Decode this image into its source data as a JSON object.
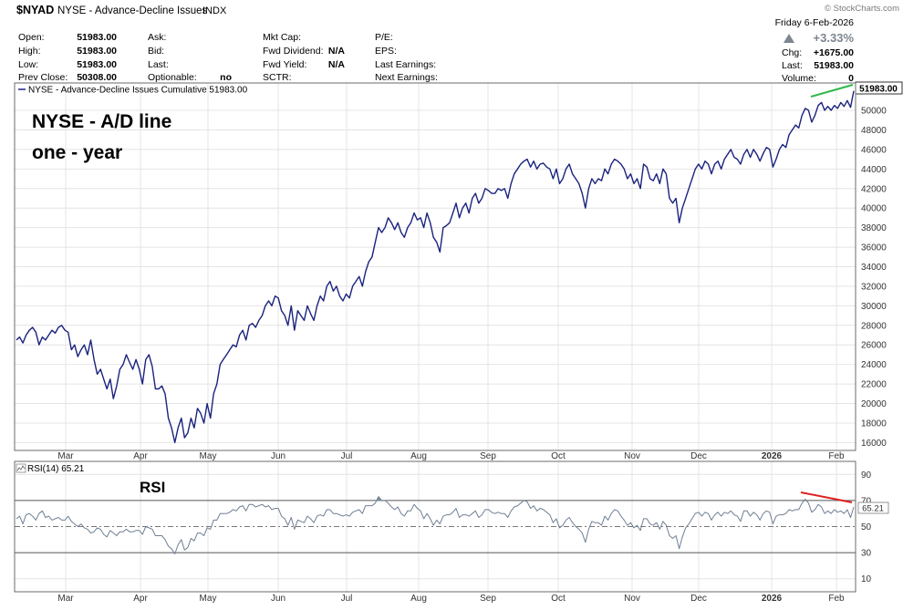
{
  "header": {
    "symbol": "$NYAD",
    "name": "NYSE - Advance-Decline Issues",
    "exchange": "INDX",
    "watermark": "© StockCharts.com",
    "date": "Friday  6-Feb-2026",
    "pct_change": "+3.33%",
    "chg_label": "Chg:",
    "chg_value": "+1675.00",
    "last_label": "Last:",
    "last_value": "51983.00",
    "volume_label": "Volume:",
    "volume_value": "0"
  },
  "quote": {
    "open_label": "Open:",
    "open_value": "51983.00",
    "high_label": "High:",
    "high_value": "51983.00",
    "low_label": "Low:",
    "low_value": "51983.00",
    "prevclose_label": "Prev Close:",
    "prevclose_value": "50308.00",
    "ask_label": "Ask:",
    "bid_label": "Bid:",
    "qlast_label": "Last:",
    "optionable_label": "Optionable:",
    "optionable_value": "no",
    "mktcap_label": "Mkt Cap:",
    "fwddiv_label": "Fwd Dividend:",
    "fwddiv_value": "N/A",
    "fwdyield_label": "Fwd Yield:",
    "fwdyield_value": "N/A",
    "sctr_label": "SCTR:",
    "pe_label": "P/E:",
    "eps_label": "EPS:",
    "lastearn_label": "Last Earnings:",
    "nextearn_label": "Next Earnings:"
  },
  "annotations": {
    "title_line1": "NYSE - A/D line",
    "title_line2": "one - year",
    "rsi_text": "RSI"
  },
  "colors": {
    "price_line": "#1a237e",
    "rsi_line": "#6f7f93",
    "highlight_green": "#2db84a",
    "highlight_red": "#e02020",
    "rsi_fill": "#7f8f9f",
    "grid": "#e4e4e4",
    "frame": "#6b6b6b"
  },
  "chart_data": [
    {
      "type": "line",
      "title": "NYSE - Advance-Decline Issues Cumulative 51983.00",
      "last_label": "51983.00",
      "xlabels": [
        "Mar",
        "Apr",
        "May",
        "Jun",
        "Jul",
        "Aug",
        "Sep",
        "Oct",
        "Nov",
        "Dec",
        "2026",
        "Feb"
      ],
      "ylim": [
        15200,
        52800
      ],
      "yticks": [
        16000,
        18000,
        20000,
        22000,
        24000,
        26000,
        28000,
        30000,
        32000,
        34000,
        36000,
        38000,
        40000,
        42000,
        44000,
        46000,
        48000,
        50000
      ],
      "ytick_labels": [
        "16000",
        "18000",
        "20000",
        "22000",
        "24000",
        "26000",
        "28000",
        "30000",
        "32000",
        "34000",
        "36000",
        "38000",
        "40000",
        "42000",
        "44000",
        "46000",
        "48000",
        "50000"
      ],
      "series": [
        {
          "values": [
            26500,
            26800,
            26200,
            27000,
            27500,
            27800,
            27300,
            26000,
            26800,
            26500,
            27000,
            27500,
            27200,
            27800,
            28000,
            27500,
            27300,
            25500,
            26000,
            24800,
            25500,
            26000,
            25000,
            26500,
            24500,
            23000,
            23500,
            22500,
            21500,
            22500,
            20500,
            21800,
            23500,
            24000,
            25000,
            24200,
            23500,
            24500,
            23500,
            22000,
            24500,
            25000,
            23800,
            21500,
            21500,
            21800,
            21000,
            18500,
            17500,
            16000,
            17500,
            18500,
            16500,
            17000,
            18500,
            17500,
            19500,
            19000,
            18000,
            20000,
            18500,
            21000,
            22000,
            24000,
            24500,
            25000,
            25500,
            26000,
            25800,
            27000,
            27500,
            26500,
            28000,
            28200,
            27800,
            28500,
            29000,
            30000,
            30500,
            30000,
            31000,
            30800,
            29500,
            29000,
            28000,
            30000,
            27500,
            29500,
            29000,
            28500,
            30000,
            29200,
            28500,
            30000,
            31000,
            30500,
            32000,
            32500,
            31500,
            32000,
            31000,
            30500,
            31200,
            30800,
            32000,
            32500,
            33000,
            32000,
            33500,
            34500,
            35000,
            36500,
            38000,
            37500,
            38000,
            39000,
            38500,
            37800,
            38500,
            37500,
            37000,
            38000,
            38500,
            39500,
            38800,
            39000,
            38000,
            39500,
            38500,
            37000,
            36500,
            35500,
            38000,
            38200,
            38500,
            39500,
            40500,
            39000,
            40000,
            40500,
            39500,
            41000,
            41500,
            40500,
            41000,
            42000,
            41800,
            41500,
            41500,
            42000,
            41800,
            42000,
            41000,
            42500,
            43500,
            44000,
            44500,
            44800,
            45000,
            44200,
            44800,
            44000,
            44500,
            44600,
            44200,
            44000,
            43000,
            44000,
            42500,
            43000,
            44000,
            44500,
            43500,
            43000,
            42500,
            41500,
            40000,
            42000,
            43000,
            42500,
            43000,
            42800,
            44000,
            43500,
            44500,
            45000,
            44800,
            44500,
            44000,
            43000,
            43500,
            42500,
            43000,
            42000,
            44500,
            44200,
            43000,
            42800,
            43500,
            42500,
            44000,
            43500,
            41000,
            40500,
            41000,
            38500,
            40000,
            41000,
            42000,
            43000,
            44000,
            44500,
            44000,
            44800,
            44500,
            43500,
            44500,
            44800,
            44000,
            45000,
            45500,
            46000,
            45200,
            45000,
            44500,
            45500,
            46000,
            45200,
            46000,
            45500,
            44800,
            45600,
            46200,
            46000,
            44200,
            45000,
            46000,
            46500,
            46200,
            47500,
            48000,
            48500,
            48200,
            49500,
            50200,
            50000,
            48800,
            49500,
            50500,
            50800,
            50000,
            50400,
            50000,
            50500,
            50200,
            50800,
            50400,
            51000,
            50308,
            51983
          ]
        }
      ]
    },
    {
      "type": "line",
      "title": "RSI(14) 65.21",
      "last_label": "65.21",
      "ylim": [
        0,
        100
      ],
      "reference_lines": [
        30,
        50,
        70
      ],
      "yticks": [
        10,
        30,
        50,
        70,
        90
      ],
      "ytick_labels": [
        "10",
        "30",
        "50",
        "70",
        "90"
      ],
      "xlabels": [
        "Mar",
        "Apr",
        "May",
        "Jun",
        "Jul",
        "Aug",
        "Sep",
        "Oct",
        "Nov",
        "Dec",
        "2026",
        "Feb"
      ],
      "series": [
        {
          "values": [
            56,
            58,
            52,
            59,
            60,
            58,
            55,
            60,
            62,
            57,
            58,
            55,
            56,
            57,
            55,
            55,
            58,
            54,
            52,
            50,
            52,
            49,
            48,
            45,
            46,
            49,
            48,
            44,
            42,
            47,
            45,
            43,
            46,
            46,
            48,
            46,
            46,
            47,
            47,
            44,
            50,
            49,
            48,
            43,
            43,
            43,
            40,
            35,
            33,
            29,
            36,
            40,
            32,
            34,
            41,
            39,
            45,
            45,
            43,
            49,
            48,
            55,
            55,
            60,
            60,
            60,
            61,
            63,
            62,
            65,
            66,
            62,
            67,
            67,
            65,
            66,
            67,
            65,
            66,
            63,
            64,
            64,
            58,
            56,
            51,
            57,
            48,
            55,
            54,
            53,
            58,
            56,
            53,
            58,
            59,
            58,
            63,
            63,
            60,
            60,
            59,
            58,
            59,
            58,
            61,
            62,
            63,
            60,
            66,
            66,
            66,
            68,
            73,
            70,
            70,
            68,
            65,
            63,
            65,
            60,
            58,
            62,
            62,
            67,
            64,
            62,
            56,
            60,
            56,
            51,
            55,
            52,
            58,
            59,
            59,
            61,
            64,
            57,
            59,
            59,
            58,
            60,
            62,
            57,
            59,
            63,
            63,
            61,
            60,
            61,
            60,
            60,
            57,
            62,
            65,
            66,
            68,
            70,
            69,
            64,
            66,
            62,
            64,
            63,
            61,
            59,
            53,
            56,
            49,
            51,
            55,
            57,
            53,
            50,
            48,
            45,
            38,
            48,
            54,
            53,
            53,
            51,
            58,
            55,
            60,
            63,
            62,
            58,
            55,
            51,
            53,
            49,
            51,
            47,
            56,
            56,
            52,
            51,
            53,
            48,
            54,
            51,
            43,
            41,
            43,
            33,
            42,
            49,
            52,
            56,
            60,
            61,
            58,
            61,
            60,
            55,
            59,
            61,
            58,
            61,
            60,
            62,
            59,
            58,
            54,
            62,
            62,
            58,
            61,
            59,
            55,
            60,
            62,
            61,
            52,
            58,
            59,
            59,
            60,
            63,
            62,
            63,
            63,
            68,
            71,
            68,
            61,
            63,
            67,
            65,
            60,
            62,
            60,
            63,
            61,
            62,
            60,
            63,
            57,
            65
          ]
        }
      ]
    }
  ]
}
